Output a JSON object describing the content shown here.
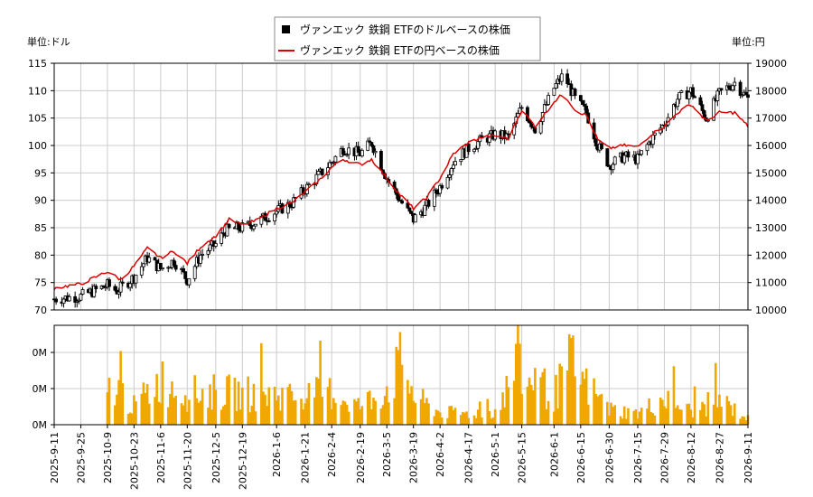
{
  "chart_data": {
    "type": "candlestick+line+bar",
    "legend": {
      "placement": "top-center",
      "entries": [
        {
          "label": "ヴァンエック 鉄鋼 ETFのドルベースの株価",
          "marker": "square",
          "color": "#000000"
        },
        {
          "label": "ヴァンエック 鉄鋼 ETFの円ベースの株価",
          "marker": "line",
          "color": "#dd0000"
        }
      ]
    },
    "left_axis": {
      "unit": "単位:ドル",
      "ylim": [
        70,
        115
      ],
      "ticks": [
        70,
        75,
        80,
        85,
        90,
        95,
        100,
        105,
        110,
        115
      ]
    },
    "right_axis": {
      "unit": "単位:円",
      "ylim": [
        10000,
        19000
      ],
      "ticks": [
        10000,
        11000,
        12000,
        13000,
        14000,
        15000,
        16000,
        17000,
        18000,
        19000
      ]
    },
    "volume_axis": {
      "ticks": [
        "0M",
        "0M",
        "0M"
      ]
    },
    "grid": true,
    "x_axis": {
      "start": "2025-09-11",
      "end": "2026-09-11",
      "tick_labels": [
        "2025-9-11",
        "2025-9-25",
        "2025-10-9",
        "2025-10-23",
        "2025-11-6",
        "2025-11-20",
        "2025-12-5",
        "2025-12-19",
        "2026-1-6",
        "2026-1-21",
        "2026-2-4",
        "2026-2-19",
        "2026-3-5",
        "2026-3-19",
        "2026-4-2",
        "2026-4-17",
        "2026-5-1",
        "2026-5-15",
        "2026-6-1",
        "2026-6-15",
        "2026-6-30",
        "2026-7-15",
        "2026-7-29",
        "2026-8-12",
        "2026-8-27",
        "2026-9-11"
      ]
    },
    "price_usd_anchors": [
      [
        "2025-09-11",
        72.0
      ],
      [
        "2025-09-25",
        72.5
      ],
      [
        "2025-10-09",
        74.5
      ],
      [
        "2025-10-14",
        73.5
      ],
      [
        "2025-10-23",
        76.0
      ],
      [
        "2025-10-30",
        79.5
      ],
      [
        "2025-11-06",
        77.5
      ],
      [
        "2025-11-13",
        79.0
      ],
      [
        "2025-11-20",
        75.5
      ],
      [
        "2025-11-27",
        80.0
      ],
      [
        "2025-12-05",
        82.0
      ],
      [
        "2025-12-10",
        84.5
      ],
      [
        "2025-12-19",
        85.0
      ],
      [
        "2025-12-26",
        86.0
      ],
      [
        "2026-01-06",
        88.0
      ],
      [
        "2026-01-14",
        89.5
      ],
      [
        "2026-01-21",
        92.0
      ],
      [
        "2026-01-28",
        94.5
      ],
      [
        "2026-02-04",
        97.0
      ],
      [
        "2026-02-10",
        99.5
      ],
      [
        "2026-02-19",
        98.5
      ],
      [
        "2026-02-25",
        100.5
      ],
      [
        "2026-03-05",
        94.0
      ],
      [
        "2026-03-12",
        90.0
      ],
      [
        "2026-03-19",
        86.5
      ],
      [
        "2026-03-26",
        89.0
      ],
      [
        "2026-04-02",
        92.5
      ],
      [
        "2026-04-09",
        97.0
      ],
      [
        "2026-04-17",
        99.5
      ],
      [
        "2026-04-24",
        101.0
      ],
      [
        "2026-05-01",
        102.0
      ],
      [
        "2026-05-08",
        101.5
      ],
      [
        "2026-05-15",
        107.0
      ],
      [
        "2026-05-22",
        103.0
      ],
      [
        "2026-06-01",
        110.5
      ],
      [
        "2026-06-06",
        113.0
      ],
      [
        "2026-06-12",
        108.5
      ],
      [
        "2026-06-18",
        106.0
      ],
      [
        "2026-06-24",
        100.0
      ],
      [
        "2026-06-30",
        96.5
      ],
      [
        "2026-07-08",
        98.0
      ],
      [
        "2026-07-15",
        97.5
      ],
      [
        "2026-07-22",
        101.0
      ],
      [
        "2026-07-29",
        104.0
      ],
      [
        "2026-08-05",
        108.5
      ],
      [
        "2026-08-12",
        110.0
      ],
      [
        "2026-08-20",
        105.0
      ],
      [
        "2026-08-27",
        109.5
      ],
      [
        "2026-09-04",
        111.5
      ],
      [
        "2026-09-11",
        108.5
      ]
    ],
    "price_jpy_anchors": [
      [
        "2025-09-11",
        10800
      ],
      [
        "2025-09-25",
        10950
      ],
      [
        "2025-10-09",
        11400
      ],
      [
        "2025-10-16",
        11100
      ],
      [
        "2025-10-23",
        11600
      ],
      [
        "2025-10-30",
        12250
      ],
      [
        "2025-11-06",
        11900
      ],
      [
        "2025-11-13",
        12150
      ],
      [
        "2025-11-20",
        11700
      ],
      [
        "2025-11-27",
        12300
      ],
      [
        "2025-12-05",
        12700
      ],
      [
        "2025-12-12",
        13300
      ],
      [
        "2025-12-19",
        13100
      ],
      [
        "2025-12-26",
        13250
      ],
      [
        "2026-01-06",
        13700
      ],
      [
        "2026-01-14",
        13900
      ],
      [
        "2026-01-21",
        14300
      ],
      [
        "2026-01-28",
        14700
      ],
      [
        "2026-02-04",
        15200
      ],
      [
        "2026-02-10",
        15500
      ],
      [
        "2026-02-19",
        15300
      ],
      [
        "2026-02-25",
        15500
      ],
      [
        "2026-03-05",
        14800
      ],
      [
        "2026-03-12",
        14200
      ],
      [
        "2026-03-19",
        13700
      ],
      [
        "2026-03-26",
        14100
      ],
      [
        "2026-04-02",
        14800
      ],
      [
        "2026-04-09",
        15700
      ],
      [
        "2026-04-17",
        16100
      ],
      [
        "2026-04-24",
        16300
      ],
      [
        "2026-05-01",
        16350
      ],
      [
        "2026-05-08",
        16250
      ],
      [
        "2026-05-15",
        17300
      ],
      [
        "2026-05-22",
        16700
      ],
      [
        "2026-06-01",
        17600
      ],
      [
        "2026-06-06",
        17900
      ],
      [
        "2026-06-12",
        17300
      ],
      [
        "2026-06-18",
        17100
      ],
      [
        "2026-06-24",
        16200
      ],
      [
        "2026-06-30",
        15900
      ],
      [
        "2026-07-08",
        16000
      ],
      [
        "2026-07-15",
        15950
      ],
      [
        "2026-07-22",
        16400
      ],
      [
        "2026-07-29",
        16700
      ],
      [
        "2026-08-05",
        17200
      ],
      [
        "2026-08-12",
        17500
      ],
      [
        "2026-08-20",
        16900
      ],
      [
        "2026-08-27",
        17200
      ],
      [
        "2026-09-04",
        17200
      ],
      [
        "2026-09-11",
        16700
      ]
    ],
    "volume_relative": [
      [
        "2025-10-09",
        0.55
      ],
      [
        "2025-10-13",
        0.62
      ],
      [
        "2025-10-23",
        0.3
      ],
      [
        "2025-11-06",
        0.72
      ],
      [
        "2025-11-20",
        0.5
      ],
      [
        "2025-12-05",
        0.52
      ],
      [
        "2025-12-19",
        0.5
      ],
      [
        "2026-01-21",
        0.46
      ],
      [
        "2026-02-04",
        0.52
      ],
      [
        "2026-02-19",
        0.3
      ],
      [
        "2026-03-05",
        0.58
      ],
      [
        "2026-03-13",
        1.0
      ],
      [
        "2026-03-16",
        0.8
      ],
      [
        "2026-03-19",
        0.45
      ],
      [
        "2026-04-02",
        0.2
      ],
      [
        "2026-04-17",
        0.18
      ],
      [
        "2026-05-01",
        0.22
      ],
      [
        "2026-05-14",
        0.95
      ],
      [
        "2026-05-18",
        0.62
      ],
      [
        "2026-05-22",
        0.75
      ],
      [
        "2026-06-01",
        0.45
      ],
      [
        "2026-06-10",
        1.0
      ],
      [
        "2026-06-15",
        0.72
      ],
      [
        "2026-06-30",
        0.25
      ],
      [
        "2026-07-15",
        0.18
      ],
      [
        "2026-07-29",
        0.42
      ],
      [
        "2026-08-12",
        0.22
      ],
      [
        "2026-08-27",
        0.4
      ],
      [
        "2026-09-11",
        0.1
      ]
    ]
  }
}
